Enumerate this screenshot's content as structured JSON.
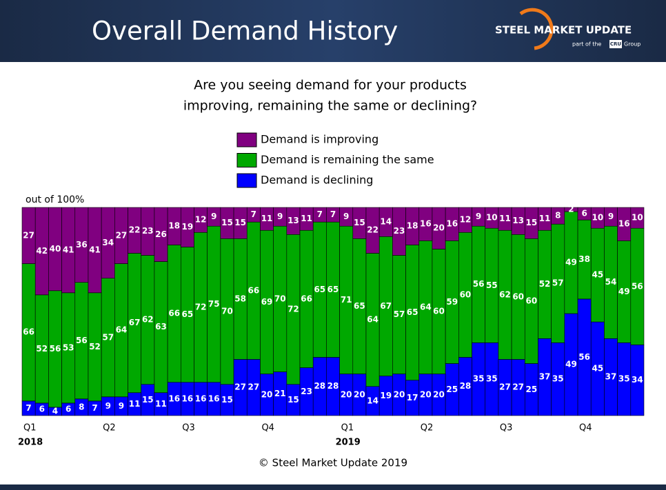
{
  "header": {
    "title": "Overall Demand History",
    "logo": "STEEL MARKET UPDATE",
    "logo_sub": "part of the",
    "logo_cru": "CRU",
    "logo_group": "Group"
  },
  "footer": "© Steel Market Update 2019",
  "chart_data": {
    "type": "stacked_bar",
    "title": [
      "Are you seeing demand for your products",
      "improving, remaining the same or declining?"
    ],
    "y_label": "out of 100%",
    "ylim": [
      0,
      100
    ],
    "categories": [
      "Q1",
      null,
      null,
      null,
      null,
      null,
      "Q2",
      null,
      null,
      null,
      null,
      null,
      "Q3",
      null,
      null,
      null,
      null,
      null,
      "Q4",
      null,
      null,
      null,
      null,
      null,
      "Q1",
      null,
      null,
      null,
      null,
      null,
      "Q2",
      null,
      null,
      null,
      null,
      null,
      "Q3",
      null,
      null,
      null,
      null,
      null,
      "Q4",
      null,
      null,
      null,
      null
    ],
    "years": [
      "2018",
      null,
      null,
      null,
      null,
      null,
      null,
      null,
      null,
      null,
      null,
      null,
      null,
      null,
      null,
      null,
      null,
      null,
      null,
      null,
      null,
      null,
      null,
      null,
      "2019",
      null,
      null,
      null,
      null,
      null,
      null,
      null,
      null,
      null,
      null,
      null,
      null,
      null,
      null,
      null,
      null,
      null,
      null,
      null,
      null,
      null,
      null
    ],
    "series": [
      {
        "name": "Demand is improving",
        "color": "#800080",
        "values": [
          27,
          42,
          40,
          41,
          36,
          41,
          34,
          27,
          22,
          23,
          26,
          18,
          19,
          12,
          9,
          15,
          15,
          7,
          11,
          9,
          13,
          11,
          7,
          7,
          9,
          15,
          22,
          14,
          23,
          18,
          16,
          20,
          16,
          12,
          9,
          10,
          11,
          13,
          15,
          11,
          8,
          2,
          6,
          10,
          9,
          16,
          10
        ]
      },
      {
        "name": "Demand is remaining the same",
        "color": "#00a800",
        "values": [
          66,
          52,
          56,
          53,
          56,
          52,
          57,
          64,
          67,
          62,
          63,
          66,
          65,
          72,
          75,
          70,
          58,
          66,
          69,
          70,
          72,
          66,
          65,
          65,
          71,
          65,
          64,
          67,
          57,
          65,
          64,
          60,
          59,
          60,
          56,
          55,
          62,
          60,
          60,
          52,
          57,
          49,
          38,
          45,
          54,
          49,
          56
        ]
      },
      {
        "name": "Demand is declining",
        "color": "#0000ff",
        "values": [
          7,
          6,
          4,
          6,
          8,
          7,
          9,
          9,
          11,
          15,
          11,
          16,
          16,
          16,
          16,
          15,
          27,
          27,
          20,
          21,
          15,
          23,
          28,
          28,
          20,
          20,
          14,
          19,
          20,
          17,
          20,
          20,
          25,
          28,
          35,
          35,
          27,
          27,
          25,
          37,
          35,
          49,
          56,
          45,
          37,
          35,
          34
        ]
      }
    ]
  }
}
